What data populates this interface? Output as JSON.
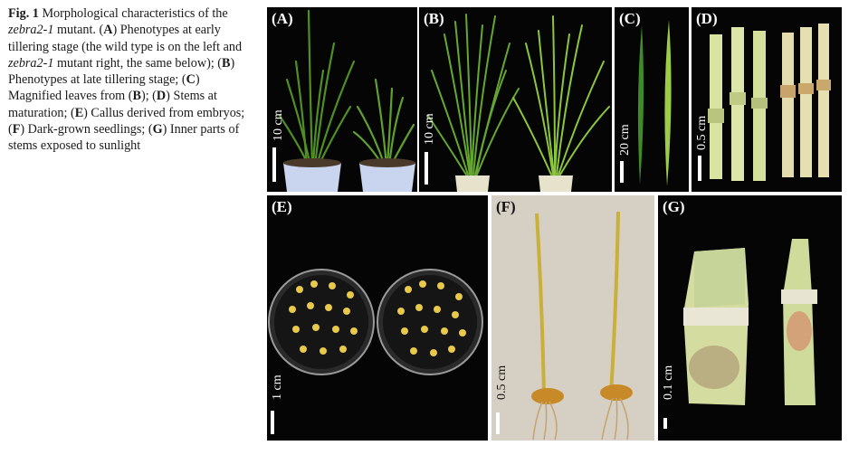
{
  "caption": {
    "figure_label": "Fig. 1",
    "t1": " Morphological characteristics of the ",
    "gene1": "zebra2-1",
    "t2": " mutant. (",
    "a": "A",
    "t3": ") Phenotypes at early tillering stage (the wild type is on the left and ",
    "gene2": "zebra2-1",
    "t4": " mutant right, the same below); (",
    "b": "B",
    "t5": ") Phenotypes at late tillering stage; (",
    "c": "C",
    "t6": ") Magnified leaves from (",
    "b2": "B",
    "t7": "); (",
    "d": "D",
    "t8": ") Stems at maturation; (",
    "e": "E",
    "t9": ") Callus derived from embryos; (",
    "f": "F",
    "t10": ") Dark-grown seedlings; (",
    "g": "G",
    "t11": ") Inner parts of stems exposed to sunlight"
  },
  "panels": {
    "A": {
      "label": "(A)",
      "scale": "10 cm"
    },
    "B": {
      "label": "(B)",
      "scale": "10 cm"
    },
    "C": {
      "label": "(C)",
      "scale": "20 cm"
    },
    "D": {
      "label": "(D)",
      "scale": "0.5 cm"
    },
    "E": {
      "label": "(E)",
      "scale": "1 cm"
    },
    "F": {
      "label": "(F)",
      "scale": "0.5 cm"
    },
    "G": {
      "label": "(G)",
      "scale": "0.1 cm"
    }
  },
  "colors": {
    "photo_background": "#050505",
    "leaf_green": "#5a9a2a",
    "stem_pale": "#d8e4a0",
    "callus_yellow": "#e8c94a",
    "beige_background": "#d6cfc3"
  }
}
